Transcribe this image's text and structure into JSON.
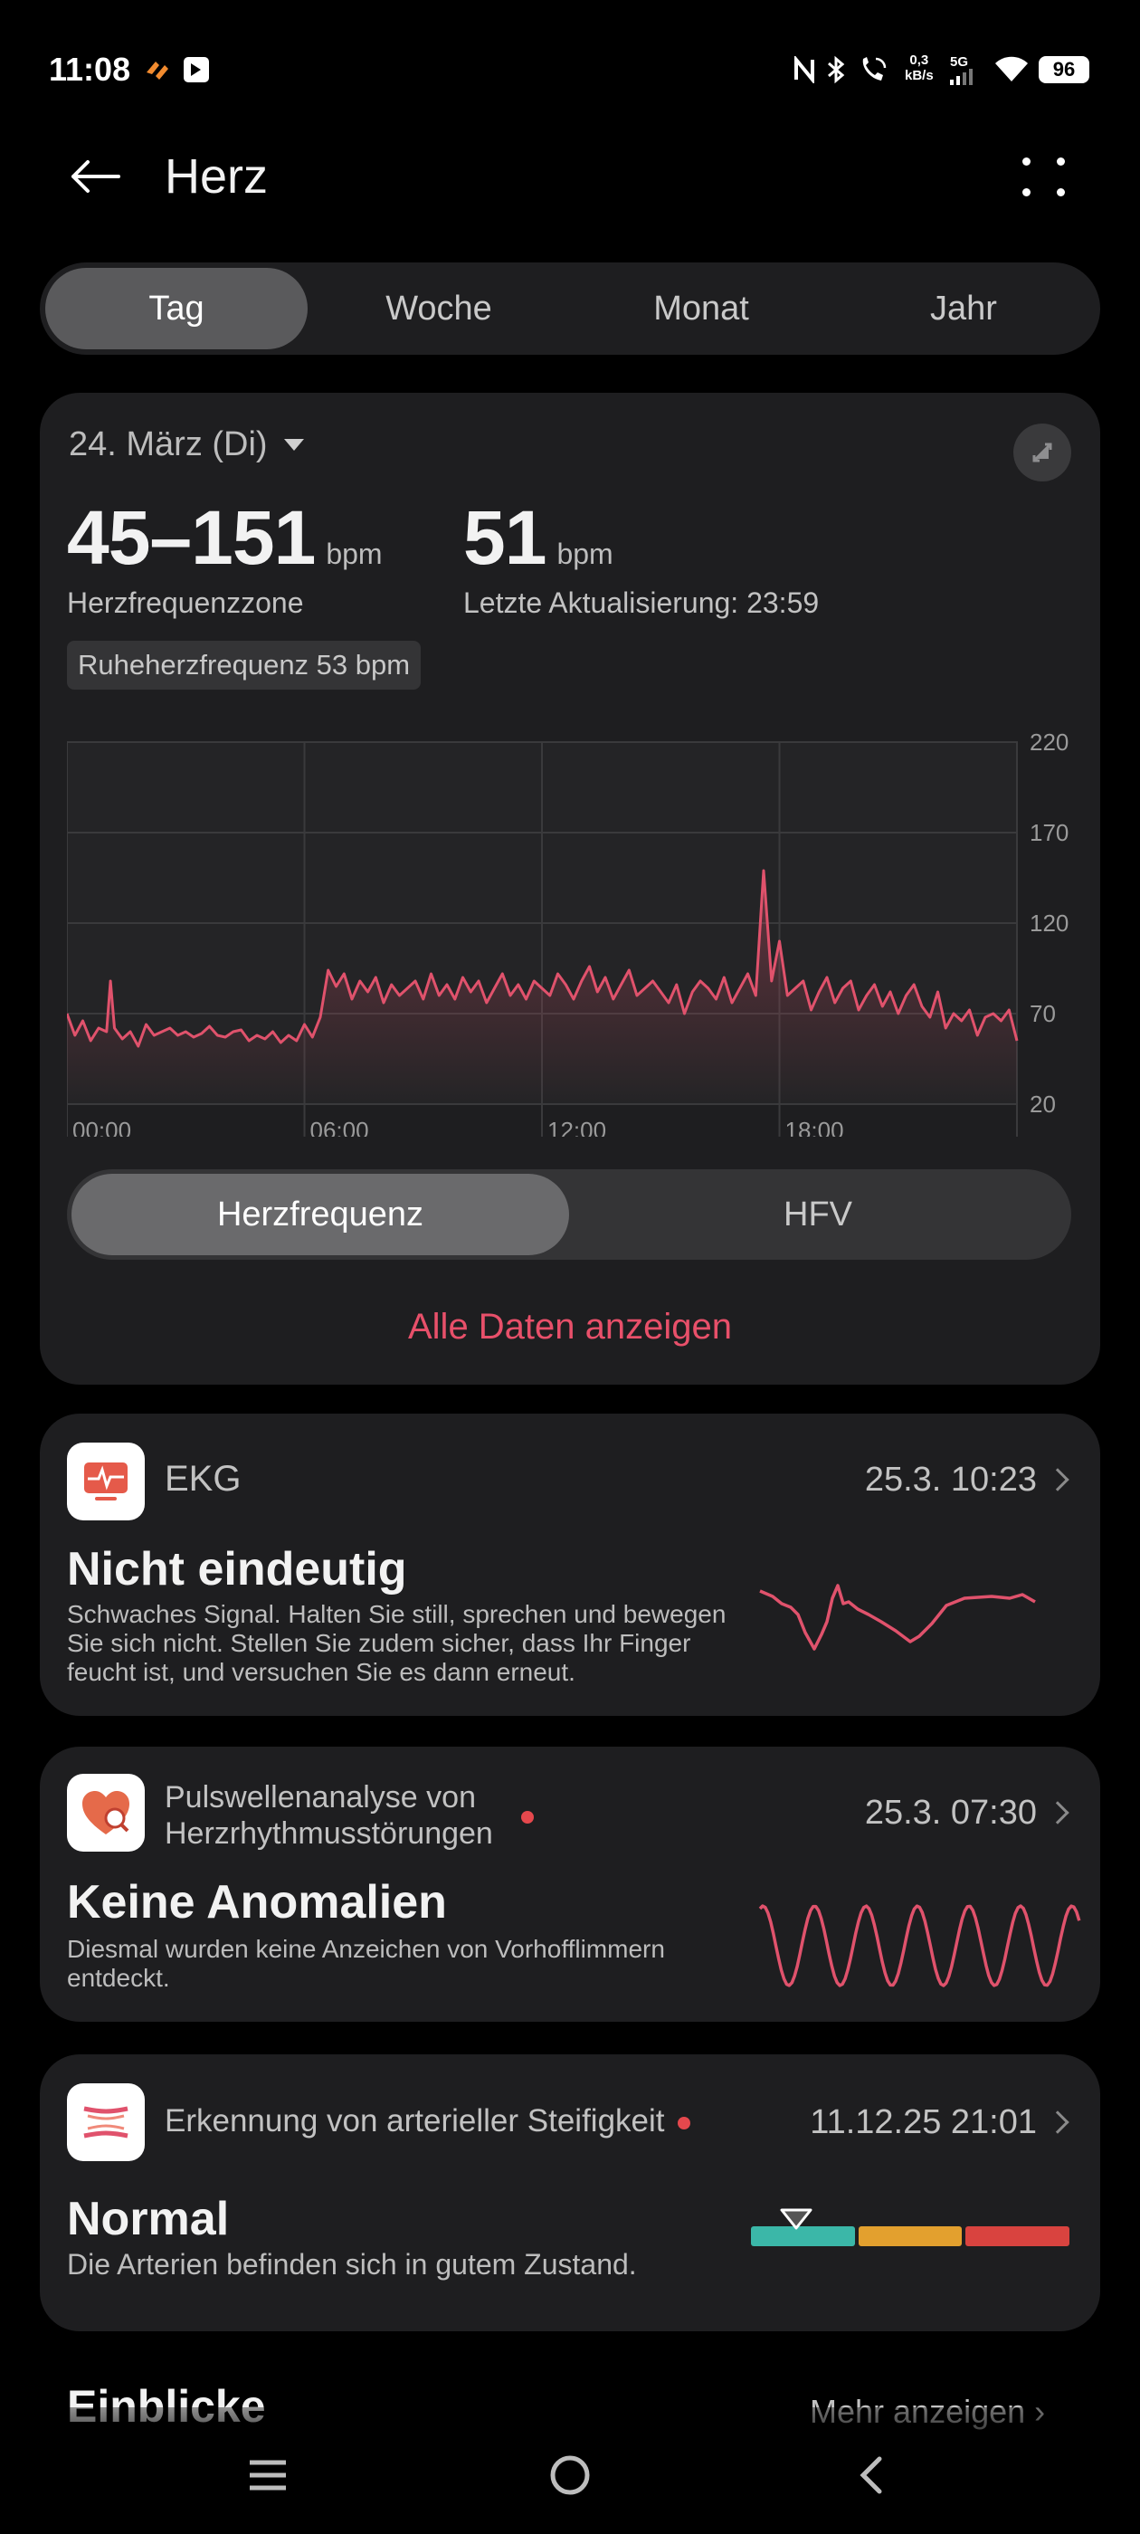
{
  "status": {
    "time": "11:08",
    "net_speed_value": "0,3",
    "net_speed_unit": "kB/s",
    "network": "5G",
    "battery": "96"
  },
  "header": {
    "title": "Herz"
  },
  "tabs": [
    {
      "label": "Tag",
      "active": true
    },
    {
      "label": "Woche",
      "active": false
    },
    {
      "label": "Monat",
      "active": false
    },
    {
      "label": "Jahr",
      "active": false
    }
  ],
  "summary": {
    "date": "24. März (Di)",
    "zone_value": "45–151",
    "zone_unit": "bpm",
    "zone_label": "Herzfrequenzzone",
    "last_value": "51",
    "last_unit": "bpm",
    "last_label": "Letzte Aktualisierung: 23:59",
    "resting": "Ruheherzfrequenz 53 bpm"
  },
  "chart_data": {
    "type": "line",
    "x_ticks": [
      "00:00",
      "06:00",
      "12:00",
      "18:00"
    ],
    "y_ticks": [
      220,
      170,
      120,
      70,
      20
    ],
    "ylim": [
      20,
      220
    ],
    "xlim_hours": [
      0,
      24
    ],
    "series": [
      {
        "color": "#e0526c",
        "x": [
          0,
          0.2,
          0.4,
          0.6,
          0.8,
          1.0,
          1.1,
          1.2,
          1.4,
          1.6,
          1.8,
          2.0,
          2.2,
          2.4,
          2.6,
          2.8,
          3.0,
          3.2,
          3.4,
          3.6,
          3.8,
          4.0,
          4.2,
          4.4,
          4.6,
          4.8,
          5.0,
          5.2,
          5.4,
          5.6,
          5.8,
          6.0,
          6.2,
          6.4,
          6.6,
          6.8,
          7.0,
          7.2,
          7.4,
          7.6,
          7.8,
          8.0,
          8.2,
          8.4,
          8.6,
          8.8,
          9.0,
          9.2,
          9.4,
          9.6,
          9.8,
          10.0,
          10.2,
          10.4,
          10.6,
          10.8,
          11.0,
          11.2,
          11.4,
          11.6,
          11.8,
          12.0,
          12.2,
          12.4,
          12.6,
          12.8,
          13.0,
          13.2,
          13.4,
          13.6,
          13.8,
          14.0,
          14.2,
          14.4,
          14.6,
          14.8,
          15.0,
          15.2,
          15.4,
          15.6,
          15.8,
          16.0,
          16.2,
          16.4,
          16.6,
          16.8,
          17.0,
          17.2,
          17.4,
          17.6,
          17.8,
          18.0,
          18.2,
          18.4,
          18.6,
          18.8,
          19.0,
          19.2,
          19.4,
          19.6,
          19.8,
          20.0,
          20.2,
          20.4,
          20.6,
          20.8,
          21.0,
          21.2,
          21.4,
          21.6,
          21.8,
          22.0,
          22.2,
          22.4,
          22.6,
          22.8,
          23.0,
          23.2,
          23.4,
          23.6,
          23.8,
          24.0
        ],
        "values": [
          70,
          58,
          66,
          55,
          62,
          60,
          88,
          62,
          56,
          60,
          52,
          64,
          58,
          60,
          62,
          58,
          60,
          57,
          59,
          63,
          58,
          57,
          60,
          61,
          55,
          58,
          56,
          60,
          54,
          58,
          55,
          64,
          57,
          68,
          94,
          85,
          92,
          78,
          88,
          82,
          90,
          76,
          86,
          80,
          84,
          88,
          78,
          92,
          80,
          86,
          78,
          90,
          82,
          88,
          76,
          84,
          92,
          80,
          86,
          78,
          88,
          84,
          80,
          92,
          86,
          78,
          88,
          96,
          82,
          90,
          78,
          86,
          94,
          80,
          84,
          88,
          82,
          76,
          86,
          70,
          82,
          88,
          84,
          78,
          90,
          76,
          84,
          92,
          80,
          149,
          88,
          110,
          80,
          84,
          88,
          72,
          82,
          90,
          76,
          84,
          88,
          72,
          80,
          86,
          74,
          82,
          70,
          80,
          86,
          74,
          68,
          82,
          62,
          70,
          66,
          72,
          58,
          68,
          70,
          66,
          72,
          55
        ]
      }
    ]
  },
  "metric_toggle": [
    {
      "label": "Herzfrequenz",
      "active": true
    },
    {
      "label": "HFV",
      "active": false
    }
  ],
  "all_data_link": "Alle Daten anzeigen",
  "ekg": {
    "title": "EKG",
    "date": "25.3. 10:23",
    "result": "Nicht eindeutig",
    "desc": "Schwaches Signal. Halten Sie still, sprechen und bewegen Sie sich nicht. Stellen Sie zudem sicher, dass Ihr Finger feucht ist, und versuchen Sie es dann erneut."
  },
  "pulse": {
    "title": "Pulswellenanalyse von Herzrhythmusstörungen",
    "date": "25.3. 07:30",
    "result": "Keine Anomalien",
    "desc": "Diesmal wurden keine Anzeichen von Vorhofflimmern entdeckt."
  },
  "arterial": {
    "title": "Erkennung von arterieller Steifigkeit",
    "date": "11.12.25 21:01",
    "result": "Normal",
    "desc": "Die Arterien befinden sich in gutem Zustand.",
    "colors": [
      "#3bb7a8",
      "#e3a02e",
      "#d9433f"
    ]
  },
  "insights": {
    "title": "Einblicke",
    "more": "Mehr anzeigen"
  },
  "icons": {
    "back": "arrow-left-icon",
    "more": "more-dots-icon",
    "nav": [
      "menu-icon",
      "home-icon",
      "back-icon"
    ]
  }
}
